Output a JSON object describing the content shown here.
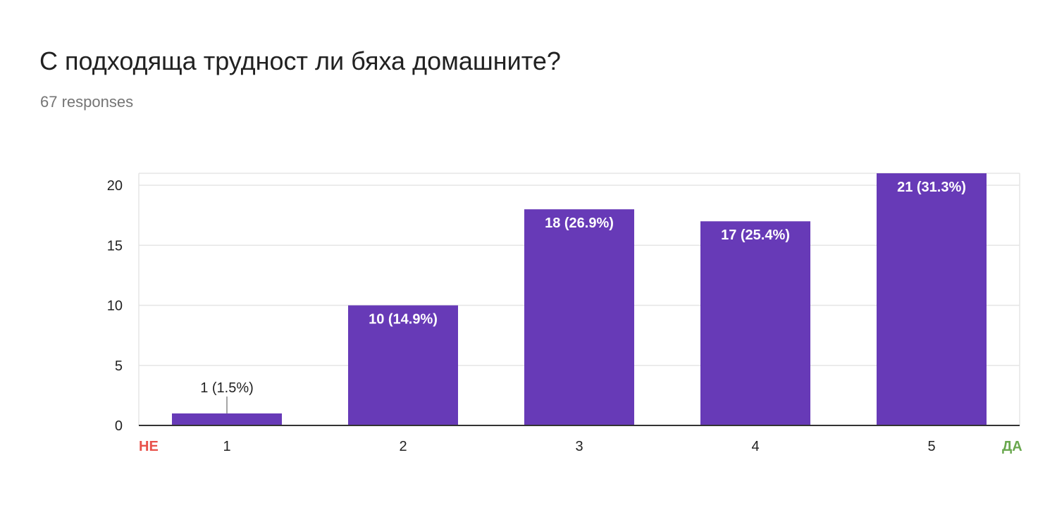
{
  "title": "С подходяща трудност ли бяха домашните?",
  "subtitle": "67 responses",
  "colors": {
    "bar": "#673ab7",
    "low_label": "#e8514a",
    "high_label": "#6aa84f",
    "grid": "#e6e6e6",
    "axis": "#333333"
  },
  "chart_data": {
    "type": "bar",
    "categories": [
      "1",
      "2",
      "3",
      "4",
      "5"
    ],
    "values": [
      1,
      10,
      18,
      17,
      21
    ],
    "labels": [
      "1 (1.5%)",
      "10 (14.9%)",
      "18 (26.9%)",
      "17 (25.4%)",
      "21 (31.3%)"
    ],
    "ylim": [
      0,
      21
    ],
    "yticks": [
      0,
      5,
      10,
      15,
      20
    ],
    "grid": true,
    "scale_low_label": "НЕ",
    "scale_high_label": "ДА",
    "xlabel": "",
    "ylabel": ""
  }
}
